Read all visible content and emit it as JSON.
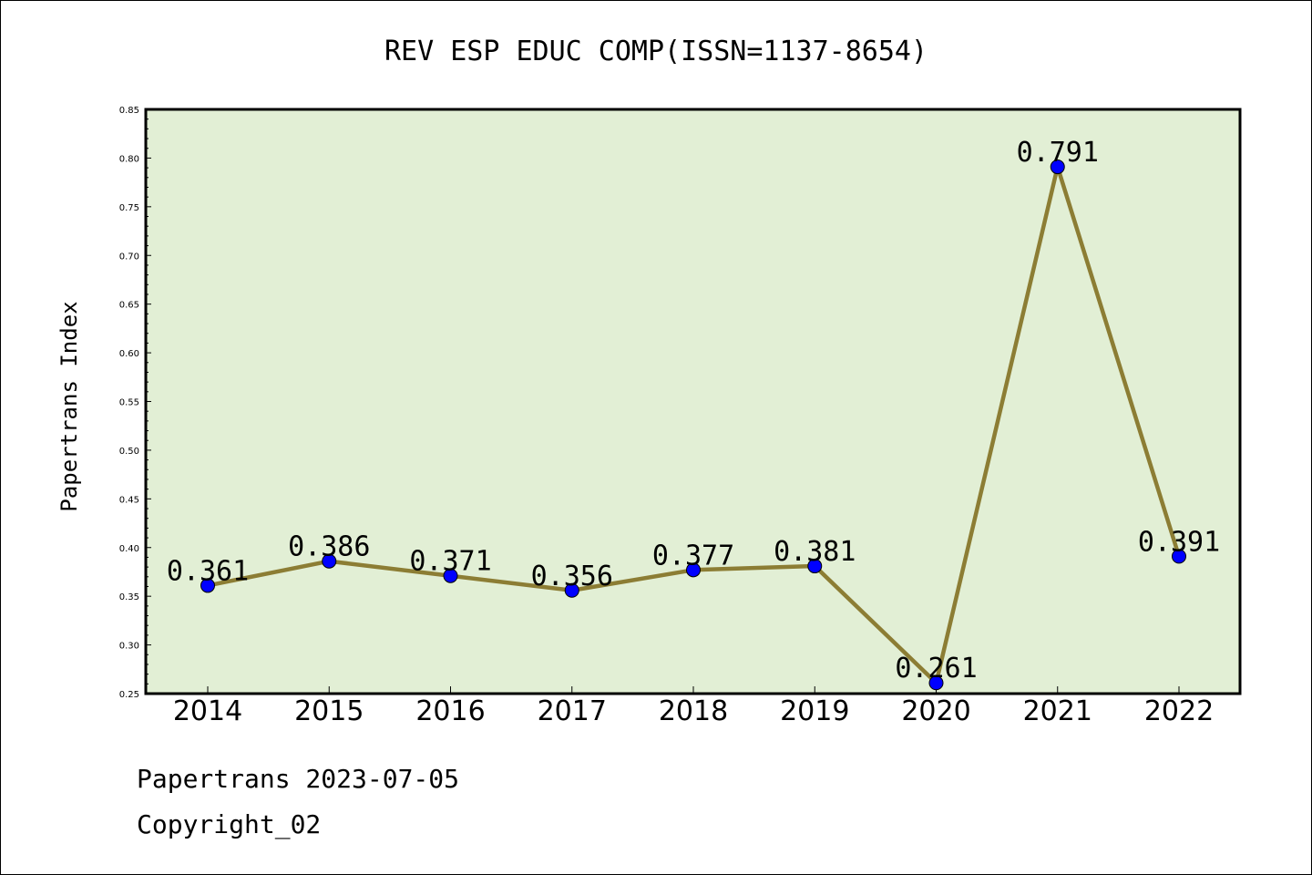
{
  "chart_data": {
    "type": "line",
    "title": "REV ESP EDUC COMP(ISSN=1137-8654)",
    "xlabel": "",
    "ylabel": "Papertrans Index",
    "categories": [
      "2014",
      "2015",
      "2016",
      "2017",
      "2018",
      "2019",
      "2020",
      "2021",
      "2022"
    ],
    "series": [
      {
        "values": [
          0.361,
          0.386,
          0.371,
          0.356,
          0.377,
          0.381,
          0.261,
          0.791,
          0.391
        ],
        "labels": [
          "0.361",
          "0.386",
          "0.371",
          "0.356",
          "0.377",
          "0.381",
          "0.261",
          "0.791",
          "0.391"
        ]
      }
    ],
    "ylim": [
      0.25,
      0.85
    ],
    "yticks": [
      "0.25",
      "0.30",
      "0.35",
      "0.40",
      "0.45",
      "0.50",
      "0.55",
      "0.60",
      "0.65",
      "0.70",
      "0.75",
      "0.80",
      "0.85"
    ],
    "grid": false,
    "colors": {
      "plot_background": "#e2efd5",
      "line": "#8c7d34",
      "marker": "#0000ff"
    }
  },
  "footer": {
    "line1": "Papertrans 2023-07-05",
    "line2": "Copyright_02"
  }
}
